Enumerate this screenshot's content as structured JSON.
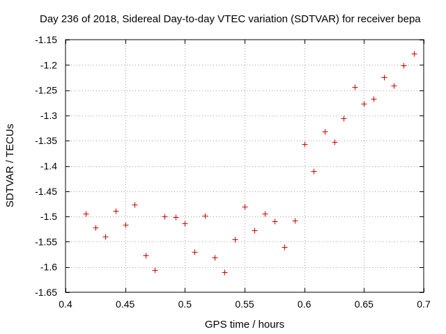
{
  "chart_data": {
    "type": "scatter",
    "title": "Day 236 of 2018, Sidereal Day-to-day VTEC variation (SDTVAR) for receiver bepa",
    "xlabel": "GPS time / hours",
    "ylabel": "SDTVAR / TECUs",
    "xlim": [
      0.4,
      0.7
    ],
    "ylim": [
      -1.65,
      -1.15
    ],
    "x_ticks": [
      0.4,
      0.45,
      0.5,
      0.55,
      0.6,
      0.65,
      0.7
    ],
    "x_tick_labels": [
      "0.4",
      "0.45",
      "0.5",
      "0.55",
      "0.6",
      "0.65",
      "0.7"
    ],
    "y_ticks": [
      -1.15,
      -1.2,
      -1.25,
      -1.3,
      -1.35,
      -1.4,
      -1.45,
      -1.5,
      -1.55,
      -1.6,
      -1.65
    ],
    "y_tick_labels": [
      "-1.15",
      "-1.2",
      "-1.25",
      "-1.3",
      "-1.35",
      "-1.4",
      "-1.45",
      "-1.5",
      "-1.55",
      "-1.6",
      "-1.65"
    ],
    "grid": true,
    "legend": "none",
    "marker": "+",
    "marker_color": "#cc0000",
    "series": [
      {
        "name": "SDTVAR",
        "x": [
          0.417,
          0.425,
          0.433,
          0.442,
          0.45,
          0.458,
          0.467,
          0.475,
          0.483,
          0.492,
          0.5,
          0.508,
          0.517,
          0.525,
          0.533,
          0.542,
          0.55,
          0.558,
          0.567,
          0.575,
          0.583,
          0.592,
          0.6,
          0.608,
          0.617,
          0.625,
          0.633,
          0.642,
          0.65,
          0.658,
          0.667,
          0.675,
          0.683,
          0.692
        ],
        "y": [
          -1.495,
          -1.522,
          -1.54,
          -1.489,
          -1.517,
          -1.477,
          -1.577,
          -1.606,
          -1.5,
          -1.501,
          -1.513,
          -1.57,
          -1.498,
          -1.581,
          -1.61,
          -1.545,
          -1.481,
          -1.527,
          -1.494,
          -1.509,
          -1.561,
          -1.508,
          -1.356,
          -1.41,
          -1.332,
          -1.352,
          -1.305,
          -1.244,
          -1.277,
          -1.267,
          -1.225,
          -1.241,
          -1.201,
          -1.177
        ]
      }
    ]
  }
}
